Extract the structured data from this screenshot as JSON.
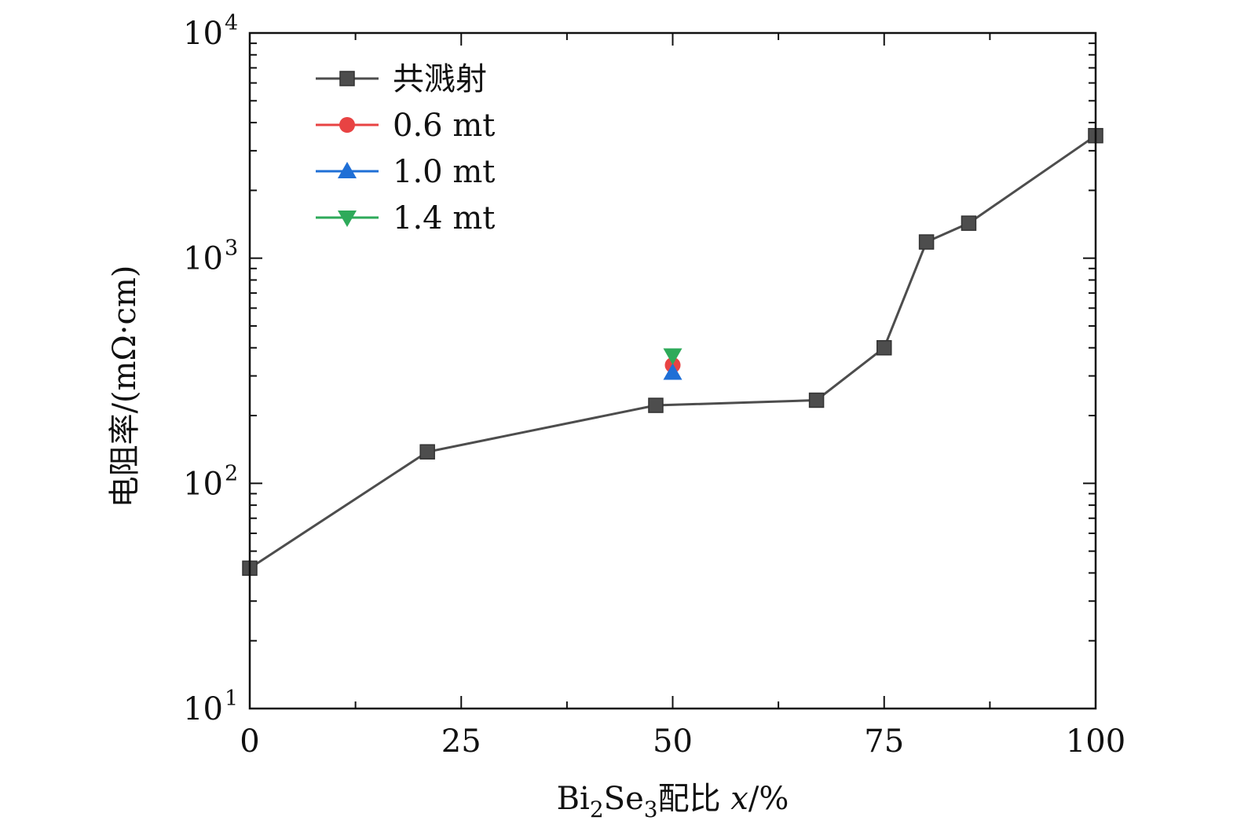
{
  "chart_data": {
    "type": "line",
    "xlabel_parts": {
      "pre": "Bi",
      "sub1": "2",
      "mid": "Se",
      "sub2": "3",
      "post": "配比 ",
      "var": "x",
      "unit": "/%"
    },
    "ylabel": "电阻率/(mΩ·cm)",
    "xlim": [
      0,
      100
    ],
    "ylim": [
      10,
      10000
    ],
    "yscale": "log",
    "x_ticks": [
      {
        "value": 0,
        "label": "0"
      },
      {
        "value": 25,
        "label": "25"
      },
      {
        "value": 50,
        "label": "50"
      },
      {
        "value": 75,
        "label": "75"
      },
      {
        "value": 100,
        "label": "100"
      }
    ],
    "y_ticks": [
      {
        "value": 10,
        "base": "10",
        "exp": "1"
      },
      {
        "value": 100,
        "base": "10",
        "exp": "2"
      },
      {
        "value": 1000,
        "base": "10",
        "exp": "3"
      },
      {
        "value": 10000,
        "base": "10",
        "exp": "4"
      }
    ],
    "legend_position": "top-left",
    "series": [
      {
        "name": "共溅射",
        "color": "#4d4d4d",
        "marker": "square",
        "line": true,
        "x": [
          0,
          21,
          48,
          67,
          75,
          80,
          85,
          100
        ],
        "y": [
          42,
          138,
          222,
          234,
          400,
          1180,
          1430,
          3500
        ]
      },
      {
        "name": "0.6 mt",
        "color": "#e84343",
        "marker": "circle",
        "line": false,
        "x": [
          50
        ],
        "y": [
          335
        ]
      },
      {
        "name": "1.0 mt",
        "color": "#1f6fd6",
        "marker": "triangle-up",
        "line": false,
        "x": [
          50
        ],
        "y": [
          310
        ]
      },
      {
        "name": "1.4 mt",
        "color": "#2eaa5a",
        "marker": "triangle-down",
        "line": false,
        "x": [
          50
        ],
        "y": [
          370
        ]
      }
    ]
  }
}
